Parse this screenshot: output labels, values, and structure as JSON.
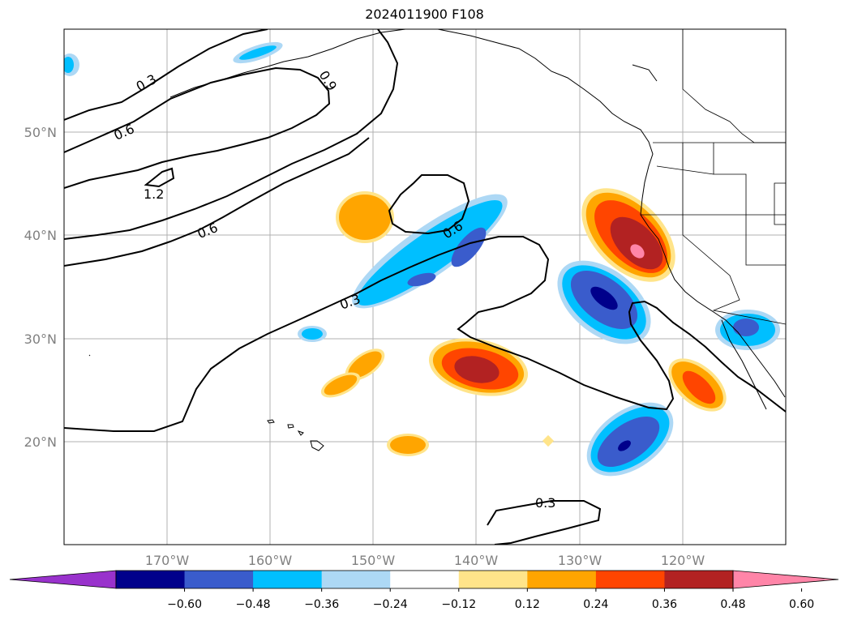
{
  "title": "2024011900 F108",
  "map": {
    "projection": "PlateCarree",
    "lon_range": [
      -180,
      -110
    ],
    "lat_range": [
      10,
      60
    ],
    "grid": true,
    "lon_ticks": [
      {
        "lon": -170,
        "label": "170°W"
      },
      {
        "lon": -160,
        "label": "160°W"
      },
      {
        "lon": -150,
        "label": "150°W"
      },
      {
        "lon": -140,
        "label": "140°W"
      },
      {
        "lon": -130,
        "label": "130°W"
      },
      {
        "lon": -120,
        "label": "120°W"
      }
    ],
    "lat_ticks": [
      {
        "lat": 20,
        "label": "20°N"
      },
      {
        "lat": 30,
        "label": "30°N"
      },
      {
        "lat": 40,
        "label": "40°N"
      },
      {
        "lat": 50,
        "label": "50°N"
      }
    ],
    "contour_labels": [
      {
        "text": "0.3",
        "lon": -178,
        "lat": 55
      },
      {
        "text": "0.6",
        "lon": -176,
        "lat": 50
      },
      {
        "text": "0.9",
        "lon": -155,
        "lat": 55
      },
      {
        "text": "1.2",
        "lon": -171,
        "lat": 44
      },
      {
        "text": "0.6",
        "lon": -165,
        "lat": 41
      },
      {
        "text": "0.6",
        "lon": -138,
        "lat": 41
      },
      {
        "text": "0.3",
        "lon": -149,
        "lat": 34
      },
      {
        "text": "0.3",
        "lon": -132,
        "lat": 14
      }
    ]
  },
  "colorbar": {
    "extend": "both",
    "colors": [
      "#9932cc",
      "#00008b",
      "#3a5ccc",
      "#00bfff",
      "#add8f5",
      "#ffffff",
      "#ffe48a",
      "#ffa500",
      "#ff4500",
      "#b22222",
      "#ff85a8"
    ],
    "levels": [
      "−0.60",
      "−0.48",
      "−0.36",
      "−0.24",
      "−0.12",
      "0.12",
      "0.24",
      "0.36",
      "0.48",
      "0.60"
    ]
  }
}
